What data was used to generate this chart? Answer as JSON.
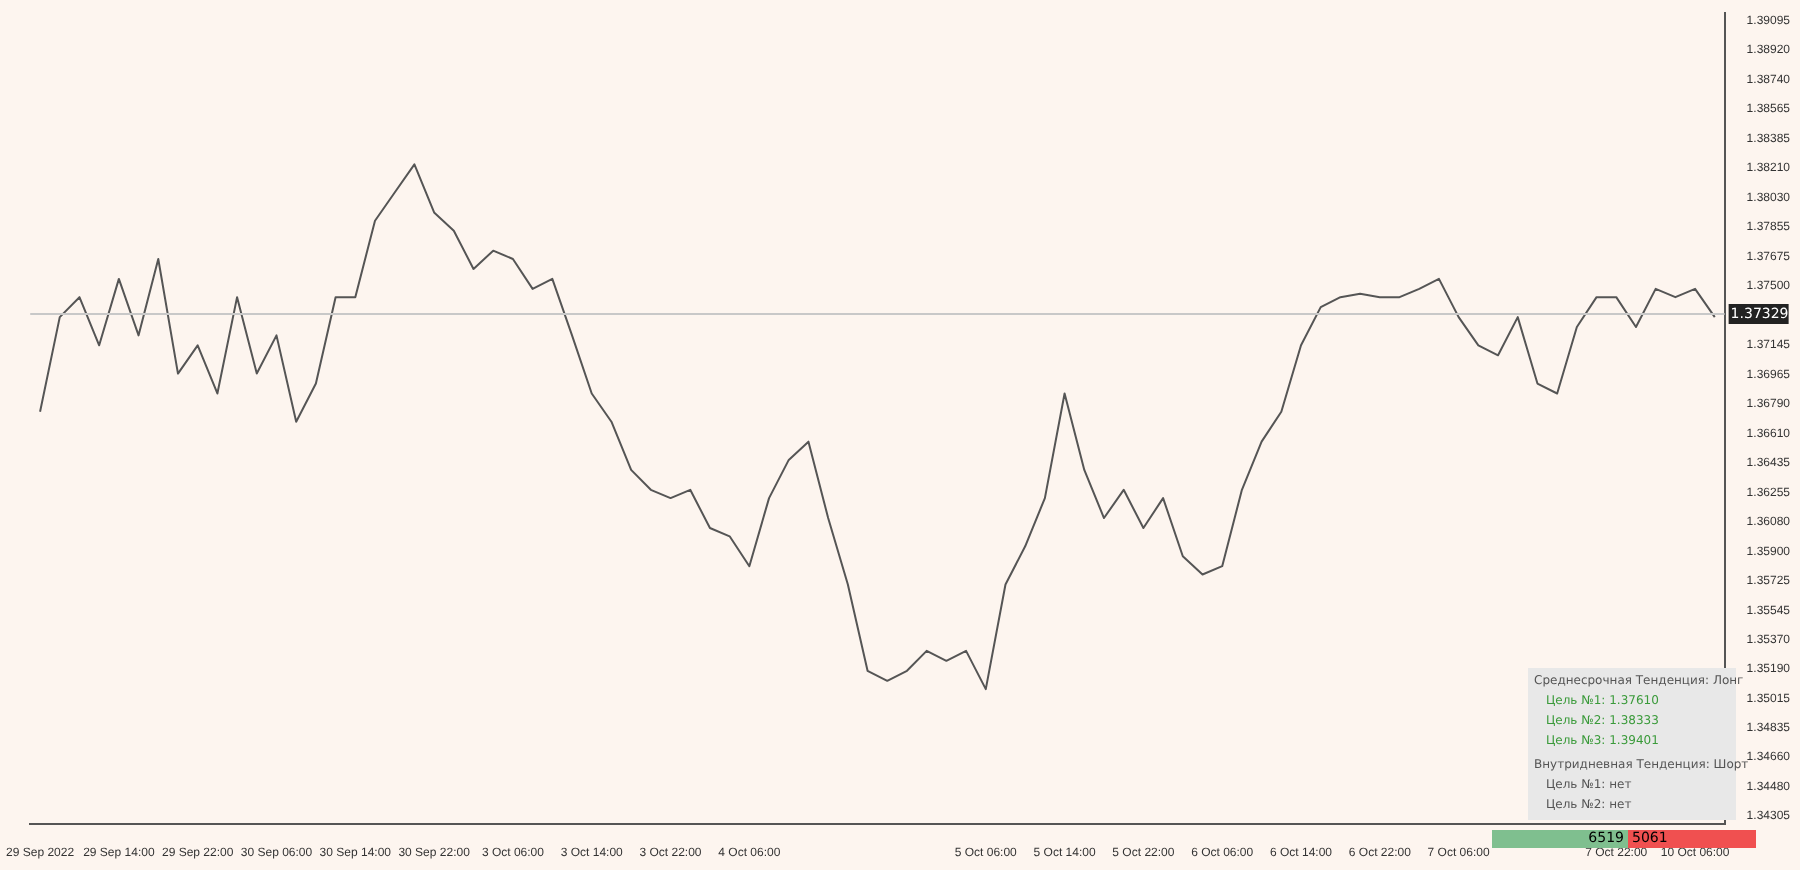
{
  "chart_data": {
    "type": "line",
    "categories": [
      "29 Sep 2022",
      null,
      null,
      null,
      "29 Sep 14:00",
      null,
      null,
      null,
      "29 Sep 22:00",
      null,
      null,
      null,
      "30 Sep 06:00",
      null,
      null,
      null,
      "30 Sep 14:00",
      null,
      null,
      null,
      "30 Sep 22:00",
      null,
      null,
      null,
      "3 Oct 06:00",
      null,
      null,
      null,
      "3 Oct 14:00",
      null,
      null,
      null,
      "3 Oct 22:00",
      null,
      null,
      null,
      "4 Oct 06:00",
      null,
      null,
      null,
      null,
      null,
      null,
      null,
      null,
      null,
      null,
      null,
      "5 Oct 06:00",
      null,
      null,
      null,
      "5 Oct 14:00",
      null,
      null,
      null,
      "5 Oct 22:00",
      null,
      null,
      null,
      "6 Oct 06:00",
      null,
      null,
      null,
      "6 Oct 14:00",
      null,
      null,
      null,
      "6 Oct 22:00",
      null,
      null,
      null,
      "7 Oct 06:00",
      null,
      null,
      null,
      null,
      null,
      null,
      null,
      "7 Oct 22:00",
      null,
      null,
      null,
      "10 Oct 06:00",
      null
    ],
    "series": [
      {
        "color": "#555555",
        "values": [
          1.3674,
          1.3731,
          1.3743,
          1.3714,
          1.3754,
          1.372,
          1.3766,
          1.3697,
          1.3714,
          1.3685,
          1.3743,
          1.3697,
          1.372,
          1.3668,
          1.3691,
          1.3743,
          1.3743,
          1.3789,
          1.3806,
          1.3823,
          1.3794,
          1.3783,
          1.376,
          1.3771,
          1.3766,
          1.3748,
          1.3754,
          1.372,
          1.3685,
          1.3668,
          1.3639,
          1.3627,
          1.3622,
          1.3627,
          1.3604,
          1.3599,
          1.3581,
          1.3622,
          1.3645,
          1.3656,
          1.361,
          1.357,
          1.3518,
          1.3512,
          1.3518,
          1.353,
          1.3524,
          1.353,
          1.3507,
          1.357,
          1.3593,
          1.3622,
          1.3685,
          1.3639,
          1.361,
          1.3627,
          1.3604,
          1.3622,
          1.3587,
          1.3576,
          1.3581,
          1.3627,
          1.3656,
          1.3674,
          1.3714,
          1.3737,
          1.3743,
          1.3745,
          1.3743,
          1.3743,
          1.3748,
          1.3754,
          1.3731,
          1.3714,
          1.3708,
          1.3731,
          1.3691,
          1.3685,
          1.3725,
          1.3743,
          1.3743,
          1.3725,
          1.3748,
          1.3743,
          1.3748,
          1.3731
        ]
      }
    ],
    "ylim": [
      1.3426,
      1.3914
    ],
    "yticks": [
      1.34305,
      {
        "value": 1.3448,
        "label": "1.34480"
      },
      {
        "value": 1.3466,
        "label": "1.34660"
      },
      1.34835,
      1.35015,
      {
        "value": 1.3519,
        "label": "1.35190"
      },
      {
        "value": 1.3537,
        "label": "1.35370"
      },
      1.35545,
      1.35725,
      {
        "value": 1.359,
        "label": "1.35900"
      },
      {
        "value": 1.3608,
        "label": "1.36080"
      },
      1.36255,
      1.36435,
      {
        "value": 1.3661,
        "label": "1.36610"
      },
      {
        "value": 1.3679,
        "label": "1.36790"
      },
      1.36965,
      1.37145,
      {
        "value": 1.375,
        "label": "1.37500"
      },
      1.37675,
      1.37855,
      {
        "value": 1.3803,
        "label": "1.38030"
      },
      {
        "value": 1.3821,
        "label": "1.38210"
      },
      1.38385,
      1.38565,
      {
        "value": 1.3874,
        "label": "1.38740"
      },
      {
        "value": 1.3892,
        "label": "1.38920"
      },
      1.39095
    ],
    "ref_lines": [
      {
        "axis": "y",
        "value": 1.37329,
        "label": "1.37329",
        "color": "#c8c8c8"
      }
    ],
    "annotations": [
      "Среднесрочная Тенденция: Лонг",
      "Цель №1: 1.37610",
      "Цель №2: 1.38333",
      "Цель №3: 1.39401",
      "Внутридневная Тенденция: Шорт",
      "Цель №1: нет",
      "Цель №2: нет",
      "6519",
      "5061"
    ],
    "grid": false,
    "legend": false
  }
}
